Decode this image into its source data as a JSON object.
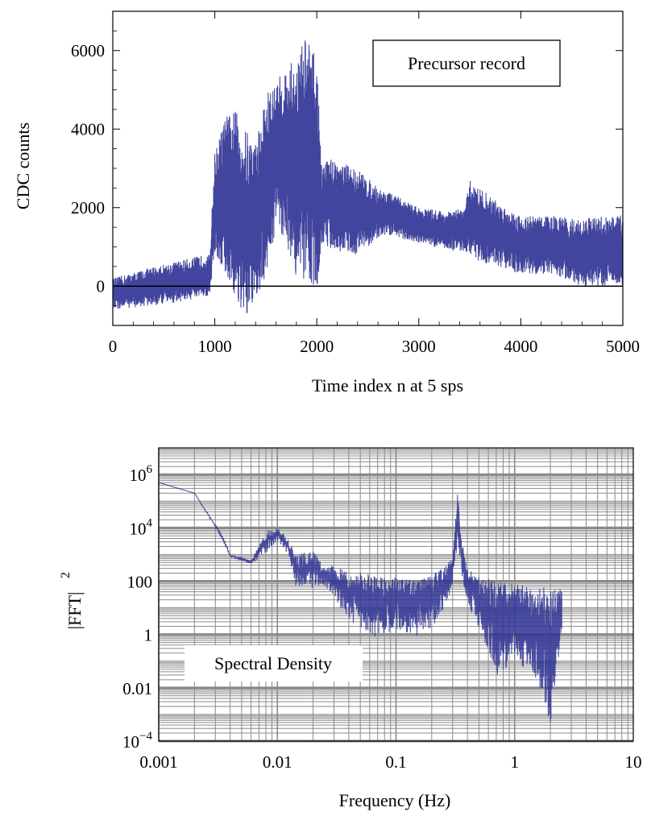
{
  "chart_data": [
    {
      "type": "line",
      "xlabel": "Time index n at 5 sps",
      "ylabel": "CDC counts",
      "xlim": [
        0,
        5000
      ],
      "ylim": [
        -1000,
        7000
      ],
      "x_ticks": [
        "0",
        "1000",
        "2000",
        "3000",
        "4000",
        "5000"
      ],
      "y_ticks": [
        "0",
        "2000",
        "4000",
        "6000"
      ],
      "grid": false,
      "legend_text": "Precursor record",
      "legend_position": "top-right",
      "series_color": "#2e3192",
      "baseline": 0,
      "envelope": {
        "x": [
          0,
          400,
          900,
          950,
          1000,
          1100,
          1200,
          1300,
          1400,
          1500,
          1600,
          1700,
          1800,
          1900,
          1950,
          2000,
          2050,
          2100,
          2200,
          2400,
          2600,
          2700,
          3000,
          3300,
          3450,
          3500,
          3600,
          3800,
          4000,
          4300,
          4600,
          4800,
          5000
        ],
        "upper": [
          200,
          500,
          800,
          800,
          3400,
          4300,
          4500,
          4000,
          3700,
          4900,
          5200,
          5600,
          5800,
          6500,
          6000,
          5900,
          2900,
          3300,
          3200,
          3000,
          2500,
          2400,
          2000,
          1900,
          2000,
          2700,
          2500,
          2100,
          1800,
          1800,
          1700,
          1800,
          1800
        ],
        "lower": [
          -600,
          -500,
          -300,
          -200,
          800,
          300,
          -300,
          -1000,
          -400,
          200,
          1500,
          1100,
          200,
          -200,
          100,
          -100,
          1100,
          1000,
          900,
          800,
          1200,
          1300,
          1100,
          900,
          900,
          800,
          600,
          500,
          300,
          300,
          0,
          0,
          0
        ]
      }
    },
    {
      "type": "line",
      "scale": "log-log",
      "xlabel": "Frequency (Hz)",
      "ylabel": "|FFT|",
      "ylabel_exponent": "2",
      "xlim": [
        0.001,
        10
      ],
      "ylim": [
        0.0001,
        10000000
      ],
      "x_ticks": [
        "0.001",
        "0.01",
        "0.1",
        "1",
        "10"
      ],
      "y_ticks": [
        {
          "base": "10",
          "exp": "−4"
        },
        {
          "base": "0.01",
          "exp": ""
        },
        {
          "base": "1",
          "exp": ""
        },
        {
          "base": "100",
          "exp": ""
        },
        {
          "base": "10",
          "exp": "4"
        },
        {
          "base": "10",
          "exp": "6"
        }
      ],
      "grid": true,
      "legend_text": "Spectral Density",
      "legend_position": "bottom-left",
      "series_color": "#2e3192",
      "envelope": {
        "x": [
          0.001,
          0.002,
          0.0035,
          0.004,
          0.006,
          0.008,
          0.01,
          0.012,
          0.015,
          0.02,
          0.025,
          0.03,
          0.04,
          0.05,
          0.07,
          0.1,
          0.15,
          0.2,
          0.25,
          0.3,
          0.33,
          0.36,
          0.4,
          0.5,
          0.7,
          1,
          1.5,
          2,
          2.5
        ],
        "upper": [
          500000,
          200000,
          5000,
          1000,
          600,
          8000,
          10000,
          5000,
          1000,
          1500,
          300,
          400,
          200,
          250,
          150,
          150,
          100,
          200,
          300,
          800,
          200000,
          3000,
          300,
          150,
          100,
          80,
          70,
          60,
          60
        ],
        "lower": [
          500000,
          200000,
          3000,
          800,
          400,
          800,
          3000,
          1000,
          20,
          40,
          50,
          20,
          2,
          1,
          0.3,
          1,
          0.5,
          1,
          5,
          50,
          2000,
          100,
          10,
          1,
          0.01,
          0.05,
          0.01,
          0.0001,
          1
        ]
      }
    }
  ]
}
